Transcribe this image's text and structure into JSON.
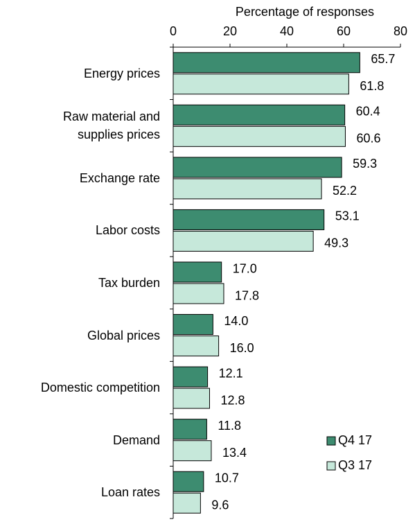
{
  "chart_data": {
    "type": "hbar",
    "xlabel": "Percentage of responses",
    "categories": [
      "Energy prices",
      "Raw material and\nsupplies prices",
      "Exchange rate",
      "Labor costs",
      "Tax burden",
      "Global prices",
      "Domestic competition",
      "Demand",
      "Loan rates"
    ],
    "series": [
      {
        "name": "Q4 17",
        "color": "#3d8c70",
        "values": [
          65.7,
          60.4,
          59.3,
          53.1,
          17.0,
          14.0,
          12.1,
          11.8,
          10.7
        ],
        "value_labels": [
          "65.7",
          "60.4",
          "59.3",
          "53.1",
          "17.0",
          "14.0",
          "12.1",
          "11.8",
          "10.7"
        ]
      },
      {
        "name": "Q3 17",
        "color": "#c6e8da",
        "values": [
          61.8,
          60.6,
          52.2,
          49.3,
          17.8,
          16.0,
          12.8,
          13.4,
          9.6
        ],
        "value_labels": [
          "61.8",
          "60.6",
          "52.2",
          "49.3",
          "17.8",
          "16.0",
          "12.8",
          "13.4",
          "9.6"
        ]
      }
    ],
    "xlim": [
      0,
      80
    ],
    "xticks": [
      0,
      20,
      40,
      60,
      80
    ],
    "legend": "bottom-right"
  }
}
